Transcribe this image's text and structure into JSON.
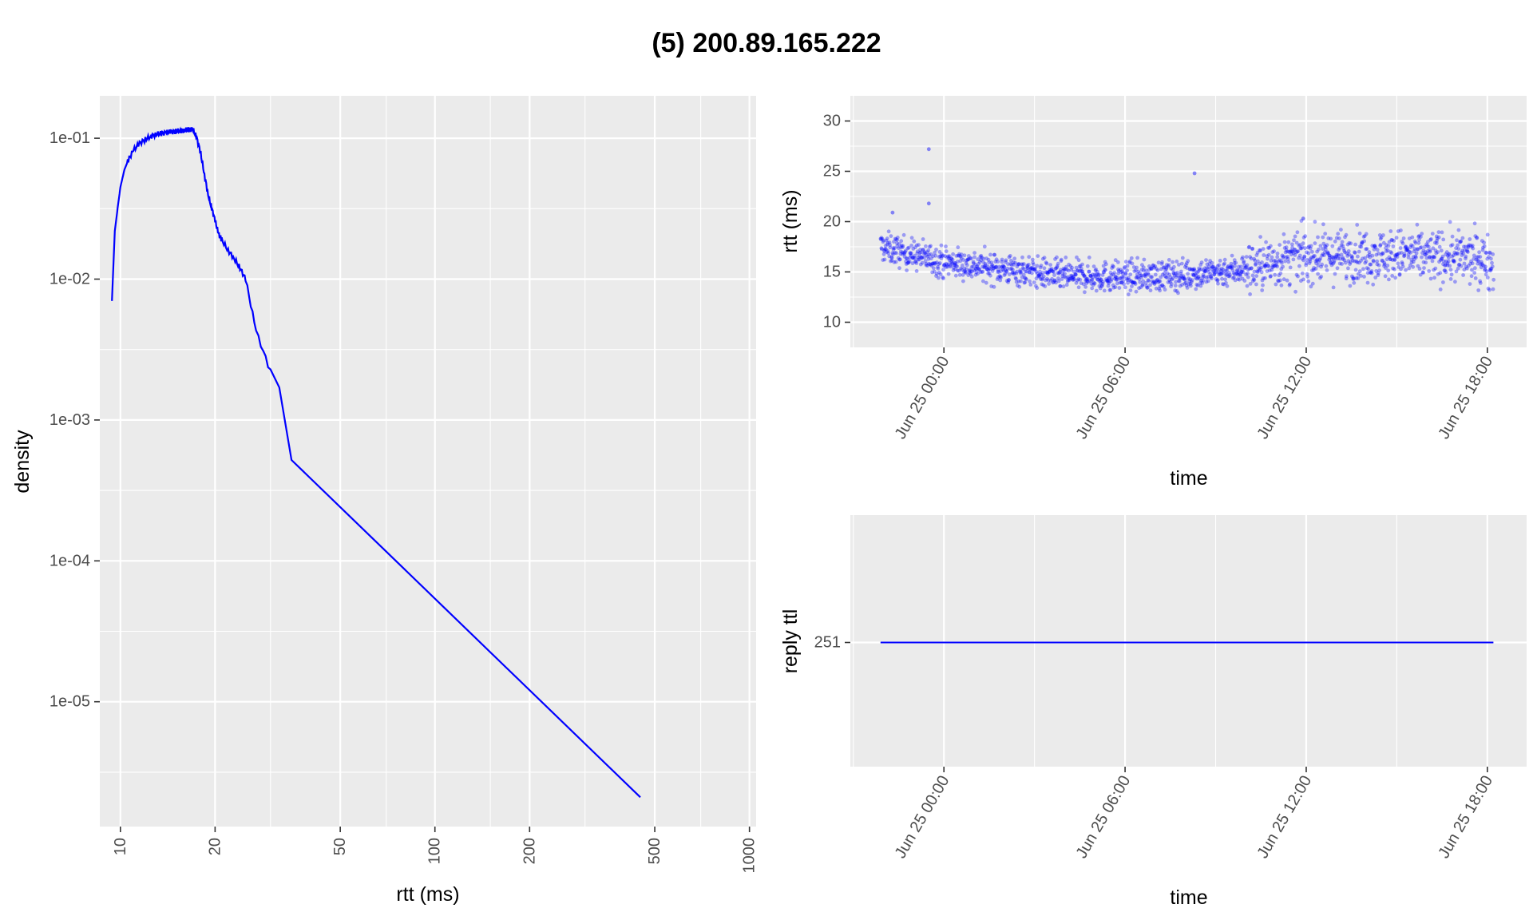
{
  "title": "(5) 200.89.165.222",
  "chart_data": [
    {
      "type": "line",
      "xlabel": "rtt (ms)",
      "ylabel": "density",
      "xscale": "log10",
      "yscale": "log10",
      "xlim": [
        8.6,
        1050
      ],
      "ylim": [
        1.3e-06,
        0.2
      ],
      "xticks": [
        10,
        20,
        50,
        100,
        200,
        500,
        1000
      ],
      "xtick_labels": [
        "10",
        "20",
        "50",
        "100",
        "200",
        "500",
        "1000"
      ],
      "yticks": [
        0.1,
        0.01,
        0.001,
        0.0001,
        1e-05
      ],
      "ytick_labels": [
        "1e-01",
        "1e-02",
        "1e-03",
        "1e-04",
        "1e-05"
      ],
      "line_color": "#0000ff",
      "grid": true,
      "series": [
        {
          "x": [
            9.4,
            9.6,
            9.8,
            10.0,
            10.3,
            10.6,
            11.0,
            11.5,
            12.0,
            12.5,
            13.0,
            13.5,
            14.0,
            14.5,
            15.0,
            15.5,
            16.0,
            16.5,
            17.0,
            17.5,
            18.0,
            18.5,
            19.0,
            19.5,
            20.0,
            20.5,
            21.0,
            22.0,
            23.0,
            24.0,
            25.0,
            27.0,
            30.0,
            32.0,
            35.0,
            450.0
          ],
          "y": [
            0.007,
            0.022,
            0.032,
            0.045,
            0.06,
            0.07,
            0.082,
            0.092,
            0.098,
            0.103,
            0.107,
            0.108,
            0.11,
            0.111,
            0.112,
            0.113,
            0.114,
            0.115,
            0.116,
            0.1,
            0.078,
            0.055,
            0.04,
            0.032,
            0.026,
            0.021,
            0.019,
            0.016,
            0.014,
            0.012,
            0.01,
            0.0043,
            0.0022,
            0.0017,
            0.00052,
            2.1e-06
          ]
        }
      ]
    },
    {
      "type": "scatter",
      "xlabel": "time",
      "ylabel": "rtt (ms)",
      "ylim": [
        7.5,
        32.5
      ],
      "yticks": [
        10,
        15,
        20,
        25,
        30
      ],
      "xlim_hours": [
        -3.1,
        19.3
      ],
      "xticks_hours": [
        0,
        6,
        12,
        18
      ],
      "xtick_labels": [
        "Jun 25 00:00",
        "Jun 25 06:00",
        "Jun 25 12:00",
        "Jun 25 18:00"
      ],
      "point_color": "#0000ff",
      "grid": true,
      "series": [
        {
          "trend_x_hours": [
            -2.1,
            0,
            2,
            4,
            6,
            8,
            10,
            11,
            12,
            14,
            16,
            18,
            18.2
          ],
          "trend_y": [
            17.5,
            16.0,
            15.3,
            14.6,
            14.5,
            14.7,
            15.3,
            16.0,
            16.5,
            16.7,
            16.6,
            16.2,
            15.8
          ],
          "outliers": [
            {
              "x_hour": -0.5,
              "y": 27.2
            },
            {
              "x_hour": -0.5,
              "y": 21.8
            },
            {
              "x_hour": -1.7,
              "y": 20.9
            },
            {
              "x_hour": 8.3,
              "y": 24.8
            },
            {
              "x_hour": 11.9,
              "y": 20.3
            }
          ]
        }
      ]
    },
    {
      "type": "line",
      "xlabel": "time",
      "ylabel": "reply ttl",
      "yticks": [
        251
      ],
      "ytick_labels": [
        "251"
      ],
      "xlim_hours": [
        -3.1,
        19.3
      ],
      "xticks_hours": [
        0,
        6,
        12,
        18
      ],
      "xtick_labels": [
        "Jun 25 00:00",
        "Jun 25 06:00",
        "Jun 25 12:00",
        "Jun 25 18:00"
      ],
      "line_color": "#0000ff",
      "grid": true,
      "series": [
        {
          "x_hours": [
            -2.1,
            18.2
          ],
          "y": [
            251,
            251
          ]
        }
      ]
    }
  ]
}
